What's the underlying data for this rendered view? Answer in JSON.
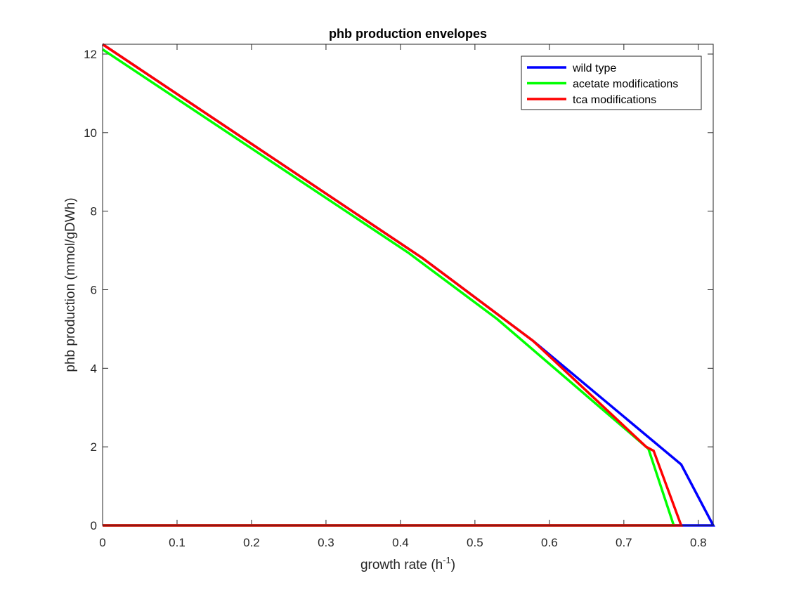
{
  "chart_data": {
    "type": "line",
    "title": "phb production envelopes",
    "xlabel_main": "growth rate (h",
    "xlabel_sup": "-1",
    "xlabel_end": ")",
    "ylabel": "phb production (mmol/gDWh)",
    "xlim": [
      0,
      0.82
    ],
    "ylim": [
      0,
      12.25
    ],
    "xticks": [
      0,
      0.1,
      0.2,
      0.3,
      0.4,
      0.5,
      0.6,
      0.7,
      0.8
    ],
    "xtick_labels": [
      "0",
      "0.1",
      "0.2",
      "0.3",
      "0.4",
      "0.5",
      "0.6",
      "0.7",
      "0.8"
    ],
    "yticks": [
      0,
      2,
      4,
      6,
      8,
      10,
      12
    ],
    "ytick_labels": [
      "0",
      "2",
      "4",
      "6",
      "8",
      "10",
      "12"
    ],
    "grid": false,
    "legend_position": "top-right",
    "series": [
      {
        "name": "wild type",
        "color": "#0000ff",
        "points": [
          [
            0,
            0
          ],
          [
            0.777,
            0
          ],
          [
            0.82,
            0
          ],
          [
            0.777,
            1.55
          ],
          [
            0.578,
            4.7
          ],
          [
            0.43,
            6.8
          ],
          [
            0,
            12.25
          ]
        ]
      },
      {
        "name": "acetate modifications",
        "color": "#00ff00",
        "points": [
          [
            0,
            0
          ],
          [
            0.767,
            0
          ],
          [
            0.733,
            1.95
          ],
          [
            0.53,
            5.25
          ],
          [
            0.41,
            6.95
          ],
          [
            0,
            12.12
          ]
        ]
      },
      {
        "name": "tca modifications",
        "color": "#ff0000",
        "points": [
          [
            0,
            0
          ],
          [
            0.777,
            0
          ],
          [
            0.74,
            1.9
          ],
          [
            0.73,
            2.0
          ],
          [
            0.578,
            4.7
          ],
          [
            0.43,
            6.8
          ],
          [
            0,
            12.25
          ]
        ]
      }
    ]
  }
}
